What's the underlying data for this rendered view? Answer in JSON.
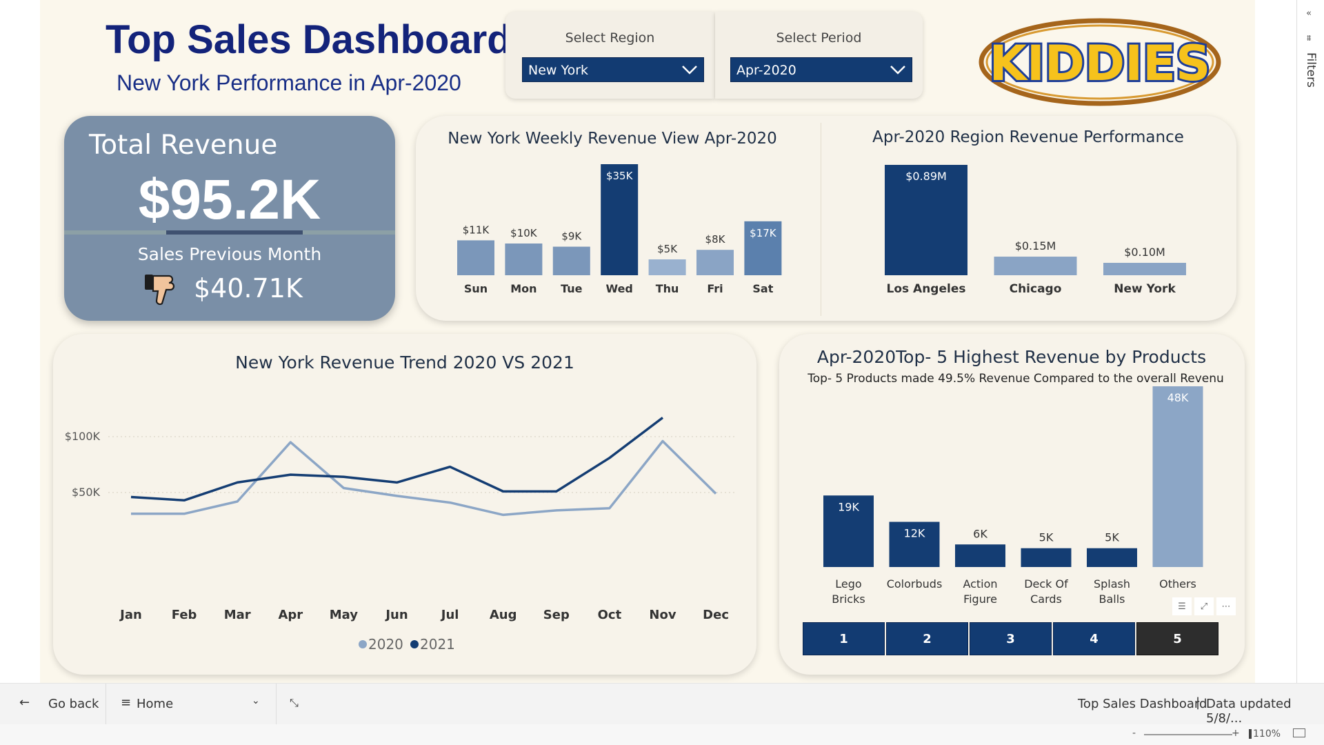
{
  "header": {
    "title": "Top Sales Dashboard",
    "subtitle": "New York Performance in Apr-2020",
    "logo_text": "KIDDIES"
  },
  "slicers": {
    "region": {
      "label": "Select Region",
      "value": "New York"
    },
    "period": {
      "label": "Select Period",
      "value": "Apr-2020"
    }
  },
  "kpi": {
    "label": "Total Revenue",
    "value": "$95.2K",
    "prev_label": "Sales Previous Month",
    "prev_value": "$40.71K",
    "trend_icon": "thumbs-down-icon"
  },
  "charts": {
    "weekly_title": "New York Weekly Revenue View Apr-2020",
    "region_title": "Apr-2020 Region Revenue Performance",
    "trend_title": "New York Revenue Trend 2020 VS 2021",
    "top_title": "Apr-2020Top- 5 Highest Revenue by Products",
    "top_subtitle": "Top- 5 Products made 49.5% Revenue Compared to the overall Revenu"
  },
  "chart_data": [
    {
      "type": "bar",
      "title": "New York Weekly Revenue View Apr-2020",
      "categories": [
        "Sun",
        "Mon",
        "Tue",
        "Wed",
        "Thu",
        "Fri",
        "Sat"
      ],
      "values": [
        11,
        10,
        9,
        35,
        5,
        8,
        17
      ],
      "labels": [
        "$11K",
        "$10K",
        "$9K",
        "$35K",
        "$5K",
        "$8K",
        "$17K"
      ],
      "unit": "K$",
      "colors": [
        "#7b97ba",
        "#7b97ba",
        "#7b97ba",
        "#143d73",
        "#99b1cf",
        "#8aa4c5",
        "#5b80ad"
      ]
    },
    {
      "type": "bar",
      "title": "Apr-2020 Region Revenue Performance",
      "categories": [
        "Los Angeles",
        "Chicago",
        "New York"
      ],
      "values": [
        0.89,
        0.15,
        0.1
      ],
      "labels": [
        "$0.89M",
        "$0.15M",
        "$0.10M"
      ],
      "unit": "M$",
      "colors": [
        "#143d73",
        "#8aa4c5",
        "#8aa4c5"
      ]
    },
    {
      "type": "line",
      "title": "New York Revenue Trend 2020 VS 2021",
      "categories": [
        "Jan",
        "Feb",
        "Mar",
        "Apr",
        "May",
        "Jun",
        "Jul",
        "Aug",
        "Sep",
        "Oct",
        "Nov",
        "Dec"
      ],
      "yticks": [
        {
          "value": 50000,
          "label": "$50K"
        },
        {
          "value": 100000,
          "label": "$100K"
        }
      ],
      "ylim": [
        0,
        120000
      ],
      "grid": true,
      "legend": "bottom",
      "series": [
        {
          "name": "2020",
          "color": "#8ca6c6",
          "values": [
            31000,
            31000,
            42000,
            95000,
            54000,
            47000,
            41000,
            30000,
            34000,
            36000,
            96000,
            49000
          ]
        },
        {
          "name": "2021",
          "color": "#143d73",
          "values": [
            46000,
            43000,
            59000,
            66000,
            64000,
            59000,
            73000,
            51000,
            51000,
            81000,
            117000,
            null
          ]
        }
      ]
    },
    {
      "type": "bar",
      "title": "Apr-2020Top- 5 Highest Revenue by Products",
      "categories": [
        "Lego Bricks",
        "Colorbuds",
        "Action Figure",
        "Deck Of Cards",
        "Splash Balls",
        "Others"
      ],
      "values": [
        19,
        12,
        6,
        5,
        5,
        48
      ],
      "labels": [
        "19K",
        "12K",
        "6K",
        "5K",
        "5K",
        "48K"
      ],
      "colors": [
        "#143d73",
        "#143d73",
        "#143d73",
        "#143d73",
        "#143d73",
        "#8ca6c6"
      ]
    }
  ],
  "top_buttons": [
    "1",
    "2",
    "3",
    "4",
    "5"
  ],
  "navbar": {
    "back": "Go back",
    "page": "Home",
    "report_name": "Top Sales Dashboard",
    "separator": "|",
    "updated": "Data updated 5/8/..."
  },
  "status": {
    "zoom": "110%",
    "zoom_level_pct": 110
  },
  "filters_pane": {
    "label": "Filters"
  }
}
